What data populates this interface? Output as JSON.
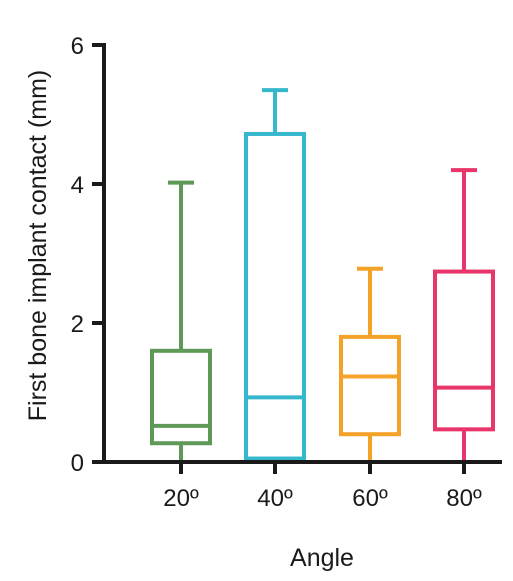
{
  "chart_data": {
    "type": "boxplot",
    "xlabel": "Angle",
    "ylabel": "First bone implant contact (mm)",
    "ylim": [
      0,
      6
    ],
    "yticks": [
      0,
      2,
      4,
      6
    ],
    "ytick_labels": [
      "0",
      "2",
      "4",
      "6"
    ],
    "grid": false,
    "legend": "none",
    "categories": [
      "20º",
      "40º",
      "60º",
      "80º"
    ],
    "boxes": [
      {
        "category": "20º",
        "min": 0.0,
        "q1": 0.27,
        "median": 0.52,
        "q3": 1.6,
        "max": 4.02,
        "color": "#5e9957"
      },
      {
        "category": "40º",
        "min": 0.0,
        "q1": 0.05,
        "median": 0.93,
        "q3": 4.72,
        "max": 5.35,
        "color": "#36b8cc"
      },
      {
        "category": "60º",
        "min": 0.0,
        "q1": 0.4,
        "median": 1.23,
        "q3": 1.8,
        "max": 2.78,
        "color": "#f5a229"
      },
      {
        "category": "80º",
        "min": 0.0,
        "q1": 0.47,
        "median": 1.07,
        "q3": 2.74,
        "max": 4.2,
        "color": "#e8356a"
      }
    ]
  }
}
